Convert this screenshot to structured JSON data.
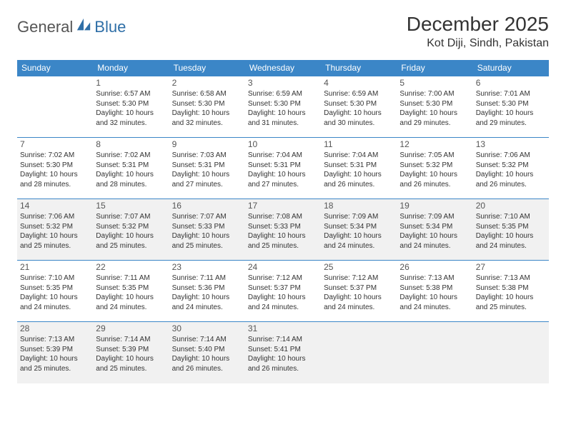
{
  "logo": {
    "text_a": "General",
    "text_b": "Blue",
    "accent_color": "#2f6fa7"
  },
  "header": {
    "month_title": "December 2025",
    "location": "Kot Diji, Sindh, Pakistan"
  },
  "calendar": {
    "day_headers": [
      "Sunday",
      "Monday",
      "Tuesday",
      "Wednesday",
      "Thursday",
      "Friday",
      "Saturday"
    ],
    "header_bg": "#3b86c7",
    "header_fg": "#ffffff",
    "border_color": "#3b86c7",
    "shaded_bg": "#f1f1f1",
    "weeks": [
      [
        null,
        {
          "n": "1",
          "sr": "Sunrise: 6:57 AM",
          "ss": "Sunset: 5:30 PM",
          "d1": "Daylight: 10 hours",
          "d2": "and 32 minutes."
        },
        {
          "n": "2",
          "sr": "Sunrise: 6:58 AM",
          "ss": "Sunset: 5:30 PM",
          "d1": "Daylight: 10 hours",
          "d2": "and 32 minutes."
        },
        {
          "n": "3",
          "sr": "Sunrise: 6:59 AM",
          "ss": "Sunset: 5:30 PM",
          "d1": "Daylight: 10 hours",
          "d2": "and 31 minutes."
        },
        {
          "n": "4",
          "sr": "Sunrise: 6:59 AM",
          "ss": "Sunset: 5:30 PM",
          "d1": "Daylight: 10 hours",
          "d2": "and 30 minutes."
        },
        {
          "n": "5",
          "sr": "Sunrise: 7:00 AM",
          "ss": "Sunset: 5:30 PM",
          "d1": "Daylight: 10 hours",
          "d2": "and 29 minutes."
        },
        {
          "n": "6",
          "sr": "Sunrise: 7:01 AM",
          "ss": "Sunset: 5:30 PM",
          "d1": "Daylight: 10 hours",
          "d2": "and 29 minutes."
        }
      ],
      [
        {
          "n": "7",
          "sr": "Sunrise: 7:02 AM",
          "ss": "Sunset: 5:30 PM",
          "d1": "Daylight: 10 hours",
          "d2": "and 28 minutes."
        },
        {
          "n": "8",
          "sr": "Sunrise: 7:02 AM",
          "ss": "Sunset: 5:31 PM",
          "d1": "Daylight: 10 hours",
          "d2": "and 28 minutes."
        },
        {
          "n": "9",
          "sr": "Sunrise: 7:03 AM",
          "ss": "Sunset: 5:31 PM",
          "d1": "Daylight: 10 hours",
          "d2": "and 27 minutes."
        },
        {
          "n": "10",
          "sr": "Sunrise: 7:04 AM",
          "ss": "Sunset: 5:31 PM",
          "d1": "Daylight: 10 hours",
          "d2": "and 27 minutes."
        },
        {
          "n": "11",
          "sr": "Sunrise: 7:04 AM",
          "ss": "Sunset: 5:31 PM",
          "d1": "Daylight: 10 hours",
          "d2": "and 26 minutes."
        },
        {
          "n": "12",
          "sr": "Sunrise: 7:05 AM",
          "ss": "Sunset: 5:32 PM",
          "d1": "Daylight: 10 hours",
          "d2": "and 26 minutes."
        },
        {
          "n": "13",
          "sr": "Sunrise: 7:06 AM",
          "ss": "Sunset: 5:32 PM",
          "d1": "Daylight: 10 hours",
          "d2": "and 26 minutes."
        }
      ],
      [
        {
          "n": "14",
          "sr": "Sunrise: 7:06 AM",
          "ss": "Sunset: 5:32 PM",
          "d1": "Daylight: 10 hours",
          "d2": "and 25 minutes."
        },
        {
          "n": "15",
          "sr": "Sunrise: 7:07 AM",
          "ss": "Sunset: 5:32 PM",
          "d1": "Daylight: 10 hours",
          "d2": "and 25 minutes."
        },
        {
          "n": "16",
          "sr": "Sunrise: 7:07 AM",
          "ss": "Sunset: 5:33 PM",
          "d1": "Daylight: 10 hours",
          "d2": "and 25 minutes."
        },
        {
          "n": "17",
          "sr": "Sunrise: 7:08 AM",
          "ss": "Sunset: 5:33 PM",
          "d1": "Daylight: 10 hours",
          "d2": "and 25 minutes."
        },
        {
          "n": "18",
          "sr": "Sunrise: 7:09 AM",
          "ss": "Sunset: 5:34 PM",
          "d1": "Daylight: 10 hours",
          "d2": "and 24 minutes."
        },
        {
          "n": "19",
          "sr": "Sunrise: 7:09 AM",
          "ss": "Sunset: 5:34 PM",
          "d1": "Daylight: 10 hours",
          "d2": "and 24 minutes."
        },
        {
          "n": "20",
          "sr": "Sunrise: 7:10 AM",
          "ss": "Sunset: 5:35 PM",
          "d1": "Daylight: 10 hours",
          "d2": "and 24 minutes."
        }
      ],
      [
        {
          "n": "21",
          "sr": "Sunrise: 7:10 AM",
          "ss": "Sunset: 5:35 PM",
          "d1": "Daylight: 10 hours",
          "d2": "and 24 minutes."
        },
        {
          "n": "22",
          "sr": "Sunrise: 7:11 AM",
          "ss": "Sunset: 5:35 PM",
          "d1": "Daylight: 10 hours",
          "d2": "and 24 minutes."
        },
        {
          "n": "23",
          "sr": "Sunrise: 7:11 AM",
          "ss": "Sunset: 5:36 PM",
          "d1": "Daylight: 10 hours",
          "d2": "and 24 minutes."
        },
        {
          "n": "24",
          "sr": "Sunrise: 7:12 AM",
          "ss": "Sunset: 5:37 PM",
          "d1": "Daylight: 10 hours",
          "d2": "and 24 minutes."
        },
        {
          "n": "25",
          "sr": "Sunrise: 7:12 AM",
          "ss": "Sunset: 5:37 PM",
          "d1": "Daylight: 10 hours",
          "d2": "and 24 minutes."
        },
        {
          "n": "26",
          "sr": "Sunrise: 7:13 AM",
          "ss": "Sunset: 5:38 PM",
          "d1": "Daylight: 10 hours",
          "d2": "and 24 minutes."
        },
        {
          "n": "27",
          "sr": "Sunrise: 7:13 AM",
          "ss": "Sunset: 5:38 PM",
          "d1": "Daylight: 10 hours",
          "d2": "and 25 minutes."
        }
      ],
      [
        {
          "n": "28",
          "sr": "Sunrise: 7:13 AM",
          "ss": "Sunset: 5:39 PM",
          "d1": "Daylight: 10 hours",
          "d2": "and 25 minutes."
        },
        {
          "n": "29",
          "sr": "Sunrise: 7:14 AM",
          "ss": "Sunset: 5:39 PM",
          "d1": "Daylight: 10 hours",
          "d2": "and 25 minutes."
        },
        {
          "n": "30",
          "sr": "Sunrise: 7:14 AM",
          "ss": "Sunset: 5:40 PM",
          "d1": "Daylight: 10 hours",
          "d2": "and 26 minutes."
        },
        {
          "n": "31",
          "sr": "Sunrise: 7:14 AM",
          "ss": "Sunset: 5:41 PM",
          "d1": "Daylight: 10 hours",
          "d2": "and 26 minutes."
        },
        null,
        null,
        null
      ]
    ],
    "shaded_weeks": [
      2,
      4
    ]
  }
}
